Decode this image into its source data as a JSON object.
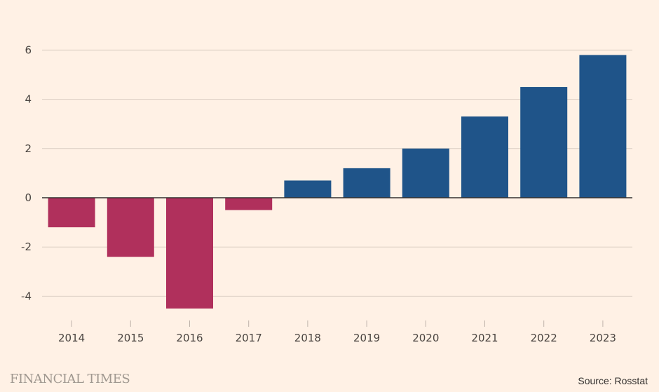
{
  "chart_data": {
    "type": "bar",
    "title": "",
    "xlabel": "",
    "ylabel": "",
    "categories": [
      "2014",
      "2015",
      "2016",
      "2017",
      "2018",
      "2019",
      "2020",
      "2021",
      "2022",
      "2023"
    ],
    "values": [
      -1.2,
      -2.4,
      -4.5,
      -0.5,
      0.7,
      1.2,
      2.0,
      3.3,
      4.5,
      5.8
    ],
    "ylim": [
      -4.8,
      6.3
    ],
    "yticks": [
      6,
      4,
      2,
      0,
      -2,
      -4
    ],
    "ytick_labels": [
      "6",
      "4",
      "2",
      "0",
      "-2",
      "-4"
    ],
    "grid": true,
    "colors": {
      "negative": "#B0305C",
      "positive": "#1F5489",
      "gridline": "#D9CCC1",
      "zero_line": "#33302E"
    }
  },
  "footer": {
    "logo": "FINANCIAL TIMES",
    "source": "Source: Rosstat"
  }
}
